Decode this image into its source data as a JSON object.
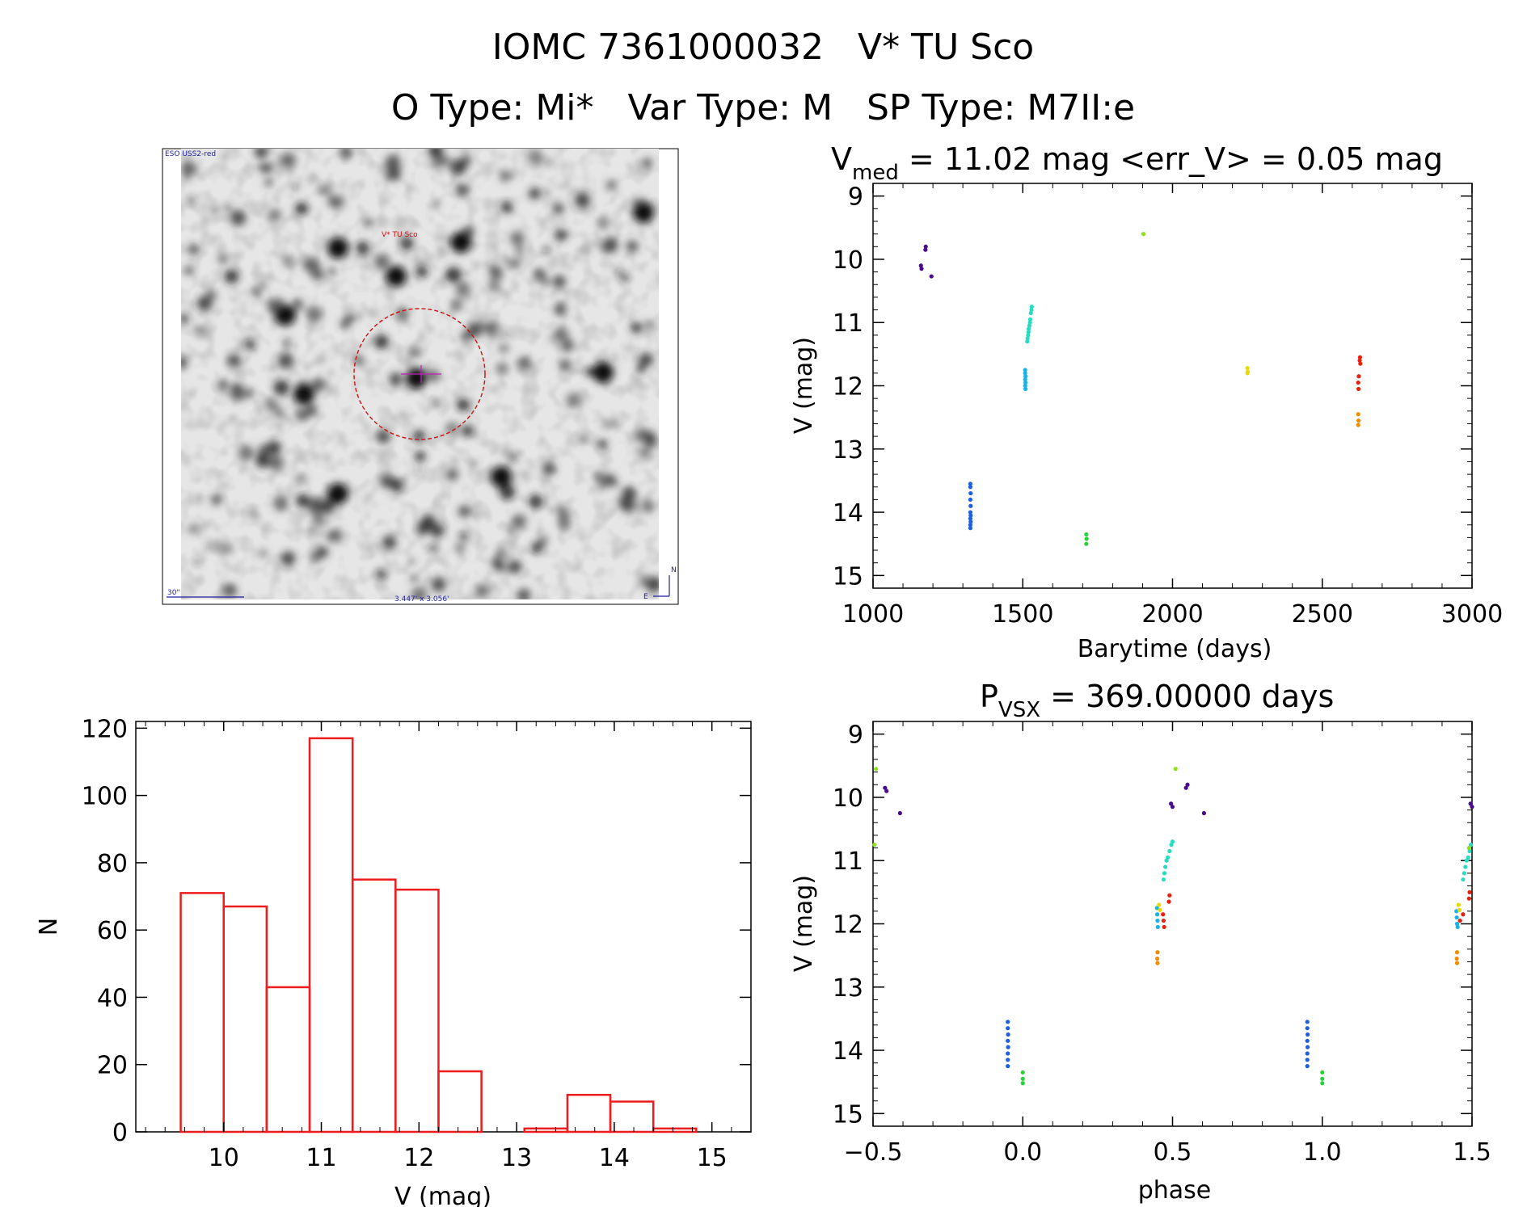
{
  "header": {
    "title": "IOMC 7361000032   V* TU Sco",
    "subtitle": "O Type: Mi*   Var Type: M   SP Type: M7II:e"
  },
  "finder": {
    "survey_label": "ESO USS2-red",
    "target_label": "V* TU Sco",
    "scale_label": "30\"",
    "fov_label": "3.447' x 3.056'",
    "north_label": "N",
    "east_label": "E"
  },
  "colors": {
    "hist_bar": "#ee1c1c",
    "finder_circle": "#d01010",
    "finder_text": "#cc1111",
    "finder_blue": "#1f1fa0",
    "crosshair": "#c020c0"
  },
  "chart_data": [
    {
      "id": "lightcurve",
      "type": "scatter",
      "title_main": "V",
      "title_sub": "med",
      "title_rest": " = 11.02 mag <err_V> = 0.05 mag",
      "xlabel": "Barytime (days)",
      "ylabel": "V (mag)",
      "xlim": [
        1000,
        3000
      ],
      "ylim": [
        15.2,
        8.8
      ],
      "xticks": [
        1000,
        1500,
        2000,
        2500,
        3000
      ],
      "yticks": [
        9,
        10,
        11,
        12,
        13,
        14,
        15
      ],
      "series": [
        {
          "name": "s1",
          "color": "#4b0a8c",
          "points": [
            [
              1160,
              10.1
            ],
            [
              1162,
              10.15
            ],
            [
              1175,
              9.85
            ],
            [
              1176,
              9.8
            ],
            [
              1195,
              10.27
            ]
          ]
        },
        {
          "name": "s2",
          "color": "#1c5fe0",
          "points": [
            [
              1325,
              13.55
            ],
            [
              1325,
              13.6
            ],
            [
              1326,
              13.7
            ],
            [
              1325,
              13.8
            ],
            [
              1326,
              13.9
            ],
            [
              1325,
              14.0
            ],
            [
              1326,
              14.05
            ],
            [
              1325,
              14.1
            ],
            [
              1326,
              14.15
            ],
            [
              1325,
              14.2
            ],
            [
              1325,
              14.25
            ]
          ]
        },
        {
          "name": "s3",
          "color": "#19b2e6",
          "points": [
            [
              1508,
              11.75
            ],
            [
              1508,
              11.8
            ],
            [
              1509,
              11.85
            ],
            [
              1508,
              11.9
            ],
            [
              1509,
              11.95
            ],
            [
              1508,
              12.0
            ],
            [
              1509,
              12.05
            ]
          ]
        },
        {
          "name": "s4",
          "color": "#27dcc3",
          "points": [
            [
              1515,
              11.3
            ],
            [
              1516,
              11.25
            ],
            [
              1518,
              11.2
            ],
            [
              1519,
              11.15
            ],
            [
              1520,
              11.1
            ],
            [
              1522,
              11.05
            ],
            [
              1524,
              11.0
            ],
            [
              1525,
              10.95
            ],
            [
              1527,
              10.85
            ],
            [
              1529,
              10.8
            ],
            [
              1530,
              10.75
            ]
          ]
        },
        {
          "name": "s5",
          "color": "#27d23a",
          "points": [
            [
              1712,
              14.35
            ],
            [
              1713,
              14.42
            ],
            [
              1712,
              14.5
            ]
          ]
        },
        {
          "name": "s6",
          "color": "#8ce21a",
          "points": [
            [
              1903,
              9.6
            ]
          ]
        },
        {
          "name": "s7",
          "color": "#ead800",
          "points": [
            [
              2250,
              11.72
            ],
            [
              2251,
              11.78
            ],
            [
              2250,
              11.8
            ]
          ]
        },
        {
          "name": "s8",
          "color": "#f08c00",
          "points": [
            [
              2620,
              12.45
            ],
            [
              2621,
              12.55
            ],
            [
              2620,
              12.62
            ]
          ]
        },
        {
          "name": "s9",
          "color": "#e8200e",
          "points": [
            [
              2620,
              11.95
            ],
            [
              2621,
              12.05
            ],
            [
              2622,
              11.85
            ],
            [
              2625,
              11.6
            ],
            [
              2626,
              11.55
            ],
            [
              2627,
              11.65
            ]
          ]
        }
      ]
    },
    {
      "id": "phased",
      "type": "scatter",
      "title_main": "P",
      "title_sub": "VSX",
      "title_rest": " = 369.00000 days",
      "xlabel": "phase",
      "ylabel": "V (mag)",
      "xlim": [
        -0.5,
        1.5
      ],
      "ylim": [
        15.2,
        8.8
      ],
      "xticks": [
        -0.5,
        0.0,
        0.5,
        1.0,
        1.5
      ],
      "xtick_labels": [
        "−0.5",
        "0.0",
        "0.5",
        "1.0",
        "1.5"
      ],
      "yticks": [
        9,
        10,
        11,
        12,
        13,
        14,
        15
      ],
      "series": [
        {
          "name": "s1",
          "color": "#4b0a8c",
          "points": [
            [
              -0.46,
              9.85
            ],
            [
              -0.455,
              9.9
            ],
            [
              -0.41,
              10.25
            ],
            [
              0.495,
              10.1
            ],
            [
              0.5,
              10.15
            ],
            [
              0.545,
              9.85
            ],
            [
              0.55,
              9.8
            ],
            [
              0.605,
              10.25
            ],
            [
              1.495,
              10.1
            ],
            [
              1.5,
              10.15
            ]
          ]
        },
        {
          "name": "s2",
          "color": "#1c5fe0",
          "points": [
            [
              -0.05,
              13.55
            ],
            [
              -0.05,
              13.65
            ],
            [
              -0.049,
              13.75
            ],
            [
              -0.05,
              13.85
            ],
            [
              -0.049,
              13.95
            ],
            [
              -0.05,
              14.05
            ],
            [
              -0.05,
              14.15
            ],
            [
              -0.05,
              14.25
            ],
            [
              0.95,
              13.55
            ],
            [
              0.95,
              13.65
            ],
            [
              0.951,
              13.75
            ],
            [
              0.95,
              13.85
            ],
            [
              0.951,
              13.95
            ],
            [
              0.95,
              14.05
            ],
            [
              0.95,
              14.15
            ],
            [
              0.95,
              14.25
            ]
          ]
        },
        {
          "name": "s3",
          "color": "#19b2e6",
          "points": [
            [
              0.448,
              11.75
            ],
            [
              0.449,
              11.85
            ],
            [
              0.45,
              11.95
            ],
            [
              0.451,
              12.05
            ],
            [
              1.448,
              11.8
            ],
            [
              1.449,
              11.9
            ],
            [
              1.45,
              12.0
            ],
            [
              1.452,
              12.05
            ]
          ]
        },
        {
          "name": "s4",
          "color": "#27dcc3",
          "points": [
            [
              0.47,
              11.3
            ],
            [
              0.473,
              11.2
            ],
            [
              0.476,
              11.1
            ],
            [
              0.48,
              11.0
            ],
            [
              0.484,
              10.95
            ],
            [
              0.49,
              10.85
            ],
            [
              0.496,
              10.75
            ],
            [
              0.5,
              10.7
            ],
            [
              1.47,
              11.3
            ],
            [
              1.474,
              11.2
            ],
            [
              1.478,
              11.1
            ],
            [
              1.482,
              11.0
            ],
            [
              1.487,
              10.95
            ],
            [
              1.492,
              10.85
            ],
            [
              1.496,
              10.75
            ]
          ]
        },
        {
          "name": "s5",
          "color": "#27d23a",
          "points": [
            [
              0.0,
              14.35
            ],
            [
              0.0,
              14.45
            ],
            [
              0.0,
              14.52
            ],
            [
              1.0,
              14.35
            ],
            [
              1.0,
              14.45
            ],
            [
              1.0,
              14.52
            ]
          ]
        },
        {
          "name": "s6",
          "color": "#8ce21a",
          "points": [
            [
              -0.49,
              9.55
            ],
            [
              -0.495,
              10.75
            ],
            [
              0.51,
              9.55
            ],
            [
              1.49,
              10.8
            ]
          ]
        },
        {
          "name": "s7",
          "color": "#ead800",
          "points": [
            [
              0.455,
              11.7
            ],
            [
              0.458,
              11.78
            ],
            [
              1.455,
              11.7
            ],
            [
              1.458,
              11.78
            ]
          ]
        },
        {
          "name": "s8",
          "color": "#f08c00",
          "points": [
            [
              0.45,
              12.45
            ],
            [
              0.449,
              12.55
            ],
            [
              0.45,
              12.62
            ],
            [
              1.45,
              12.45
            ],
            [
              1.449,
              12.55
            ],
            [
              1.45,
              12.62
            ]
          ]
        },
        {
          "name": "s9",
          "color": "#e8200e",
          "points": [
            [
              0.468,
              11.85
            ],
            [
              0.47,
              11.95
            ],
            [
              0.472,
              12.05
            ],
            [
              0.488,
              11.65
            ],
            [
              0.49,
              11.55
            ],
            [
              1.46,
              11.95
            ],
            [
              1.47,
              11.85
            ],
            [
              1.49,
              11.6
            ],
            [
              1.492,
              11.5
            ]
          ]
        }
      ]
    },
    {
      "id": "histogram",
      "type": "bar",
      "title": "",
      "xlabel": "V (mag)",
      "ylabel": "N",
      "xlim": [
        9.1,
        15.4
      ],
      "ylim": [
        0,
        122
      ],
      "xticks": [
        10,
        11,
        12,
        13,
        14,
        15
      ],
      "yticks": [
        0,
        20,
        40,
        60,
        80,
        100,
        120
      ],
      "bin_edges": [
        9.56,
        10.0,
        10.44,
        10.88,
        11.32,
        11.76,
        12.2,
        12.64,
        13.08,
        13.52,
        13.96,
        14.4,
        14.84
      ],
      "values": [
        71,
        67,
        43,
        117,
        75,
        72,
        18,
        0,
        1,
        11,
        9,
        1
      ]
    }
  ]
}
